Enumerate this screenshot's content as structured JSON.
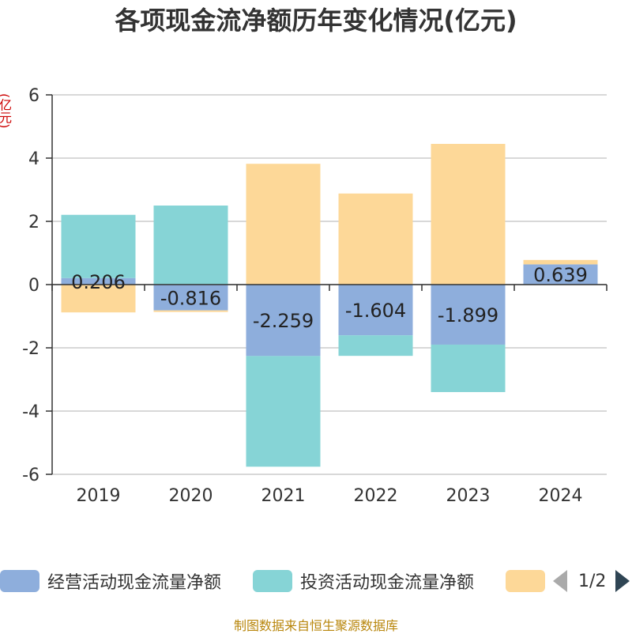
{
  "title": "各项现金流净额历年变化情况(亿元)",
  "unit_label": "(亿元)",
  "source": "制图数据来自恒生聚源数据库",
  "legend_page": "1/2",
  "colors": {
    "operating": "#8eaedc",
    "investing": "#86d4d6",
    "financing": "#fdd898",
    "axis": "#333333",
    "grid": "#cccccc"
  },
  "chart_data": {
    "type": "bar",
    "stacked": true,
    "title": "各项现金流净额历年变化情况(亿元)",
    "ylabel": "(亿元)",
    "ylim": [
      -6,
      6
    ],
    "yticks": [
      6,
      4,
      2,
      0,
      -2,
      -4,
      -6
    ],
    "categories": [
      "2019",
      "2020",
      "2021",
      "2022",
      "2023",
      "2024"
    ],
    "series": [
      {
        "name": "经营活动现金流量净额",
        "key": "operating",
        "values": [
          0.206,
          -0.816,
          -2.259,
          -1.604,
          -1.899,
          0.639
        ],
        "labels": [
          "0.206",
          "-0.816",
          "-2.259",
          "-1.604",
          "-1.899",
          "0.639"
        ]
      },
      {
        "name": "投资活动现金流量净额",
        "key": "investing",
        "values": [
          2.0,
          2.5,
          -3.5,
          -0.65,
          -1.5,
          0.0
        ]
      },
      {
        "name": "",
        "key": "financing",
        "values": [
          -0.88,
          -0.05,
          3.82,
          2.88,
          4.45,
          0.14
        ]
      }
    ]
  }
}
